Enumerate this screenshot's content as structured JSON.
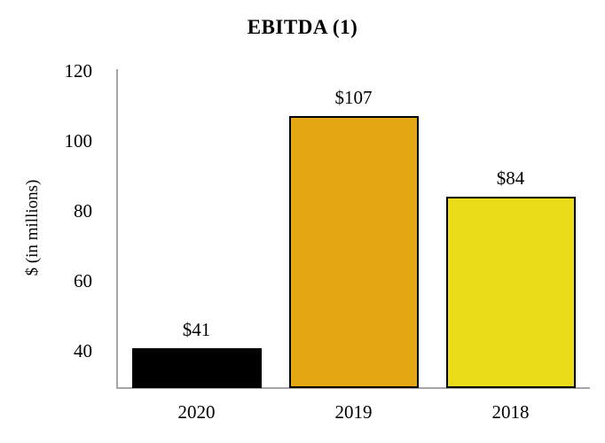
{
  "chart_data": {
    "type": "bar",
    "title": "EBITDA (1)",
    "xlabel": "",
    "ylabel": "$ (in millions)",
    "categories": [
      "2020",
      "2019",
      "2018"
    ],
    "values": [
      41,
      107,
      84
    ],
    "data_labels": [
      "$41",
      "$107",
      "$84"
    ],
    "bar_colors": [
      "#000000",
      "#E2A713",
      "#EADC17"
    ],
    "bar_border_color": "#000000",
    "yticks": [
      40,
      60,
      80,
      100,
      120
    ],
    "ylim": [
      29.5,
      120.5
    ],
    "axis_color": "#A6A6A6",
    "grid": false,
    "legend": "none",
    "background_color": "#FFFFFF"
  }
}
